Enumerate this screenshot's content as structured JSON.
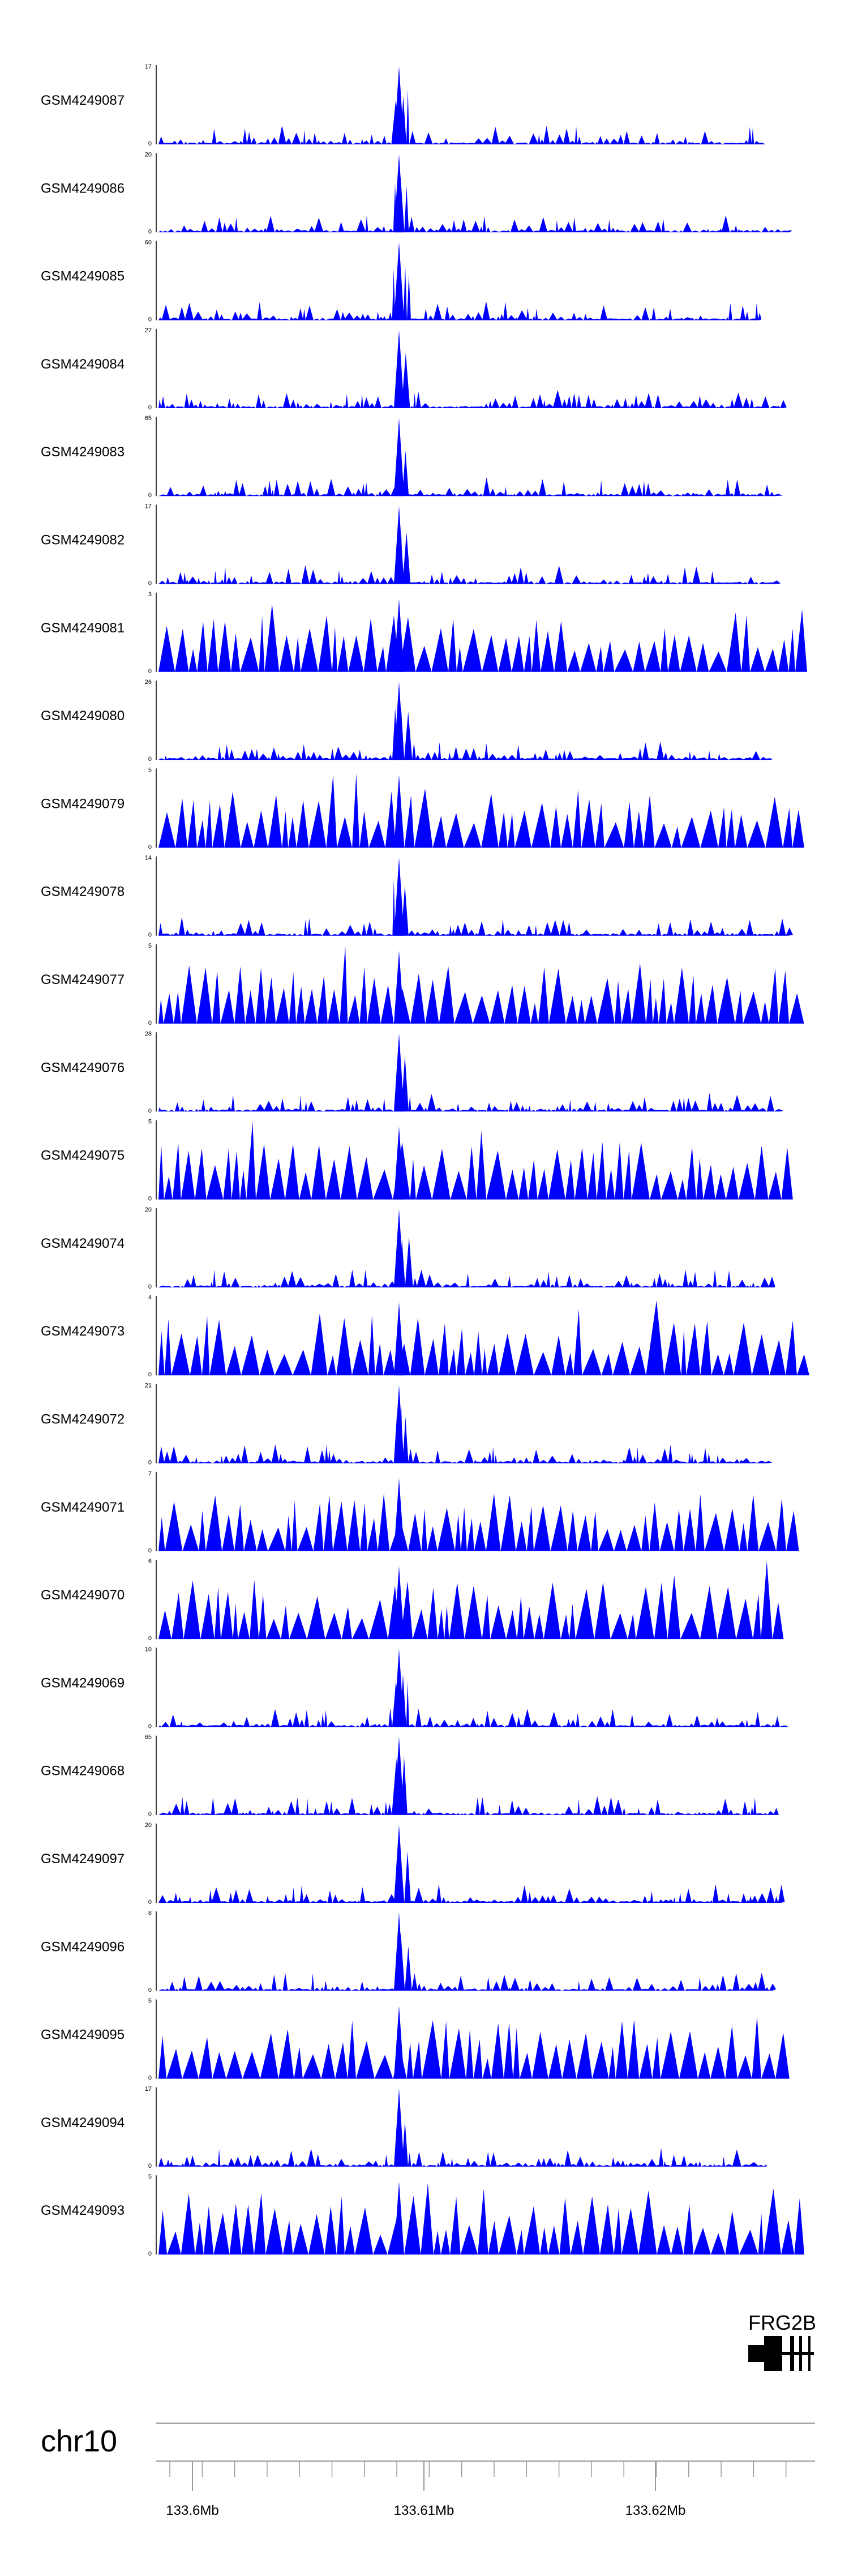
{
  "chart_data": {
    "type": "area",
    "title": "",
    "chromosome": "chr10",
    "gene": {
      "name": "FRG2B"
    },
    "x_axis": {
      "unit": "Mb",
      "ticks": [
        {
          "value": 133.6,
          "label": "133.6Mb"
        },
        {
          "value": 133.61,
          "label": "133.61Mb"
        },
        {
          "value": 133.62,
          "label": "133.62Mb"
        }
      ]
    },
    "colors": {
      "fill": "#0000ff",
      "axis": "#000000",
      "gene": "#000000",
      "scale_line": "#999999"
    },
    "tracks": [
      {
        "name": "GSM4249087",
        "ymax": "17",
        "ymin": "0",
        "peak": 17,
        "style": "dense"
      },
      {
        "name": "GSM4249086",
        "ymax": "20",
        "ymin": "0",
        "peak": 20,
        "style": "dense"
      },
      {
        "name": "GSM4249085",
        "ymax": "60",
        "ymin": "0",
        "peak": 60,
        "style": "dense"
      },
      {
        "name": "GSM4249084",
        "ymax": "27",
        "ymin": "0",
        "peak": 27,
        "style": "dense"
      },
      {
        "name": "GSM4249083",
        "ymax": "65",
        "ymin": "0",
        "peak": 65,
        "style": "dense"
      },
      {
        "name": "GSM4249082",
        "ymax": "17",
        "ymin": "0",
        "peak": 17,
        "style": "dense"
      },
      {
        "name": "GSM4249081",
        "ymax": "3",
        "ymin": "0",
        "peak": 3,
        "style": "sparse"
      },
      {
        "name": "GSM4249080",
        "ymax": "26",
        "ymin": "0",
        "peak": 26,
        "style": "dense"
      },
      {
        "name": "GSM4249079",
        "ymax": "5",
        "ymin": "0",
        "peak": 5,
        "style": "sparse"
      },
      {
        "name": "GSM4249078",
        "ymax": "14",
        "ymin": "0",
        "peak": 14,
        "style": "dense"
      },
      {
        "name": "GSM4249077",
        "ymax": "5",
        "ymin": "0",
        "peak": 5,
        "style": "sparse"
      },
      {
        "name": "GSM4249076",
        "ymax": "28",
        "ymin": "0",
        "peak": 28,
        "style": "dense"
      },
      {
        "name": "GSM4249075",
        "ymax": "5",
        "ymin": "0",
        "peak": 5,
        "style": "sparse"
      },
      {
        "name": "GSM4249074",
        "ymax": "20",
        "ymin": "0",
        "peak": 20,
        "style": "dense"
      },
      {
        "name": "GSM4249073",
        "ymax": "4",
        "ymin": "0",
        "peak": 4,
        "style": "sparse"
      },
      {
        "name": "GSM4249072",
        "ymax": "21",
        "ymin": "0",
        "peak": 21,
        "style": "dense"
      },
      {
        "name": "GSM4249071",
        "ymax": "7",
        "ymin": "0",
        "peak": 7,
        "style": "sparse"
      },
      {
        "name": "GSM4249070",
        "ymax": "6",
        "ymin": "0",
        "peak": 6,
        "style": "sparse"
      },
      {
        "name": "GSM4249069",
        "ymax": "10",
        "ymin": "0",
        "peak": 10,
        "style": "dense"
      },
      {
        "name": "GSM4249068",
        "ymax": "65",
        "ymin": "0",
        "peak": 65,
        "style": "dense"
      },
      {
        "name": "GSM4249097",
        "ymax": "20",
        "ymin": "0",
        "peak": 20,
        "style": "dense"
      },
      {
        "name": "GSM4249096",
        "ymax": "8",
        "ymin": "0",
        "peak": 8,
        "style": "dense"
      },
      {
        "name": "GSM4249095",
        "ymax": "5",
        "ymin": "0",
        "peak": 5,
        "style": "sparse"
      },
      {
        "name": "GSM4249094",
        "ymax": "17",
        "ymin": "0",
        "peak": 17,
        "style": "dense"
      },
      {
        "name": "GSM4249093",
        "ymax": "5",
        "ymin": "0",
        "peak": 5,
        "style": "sparse"
      }
    ]
  }
}
